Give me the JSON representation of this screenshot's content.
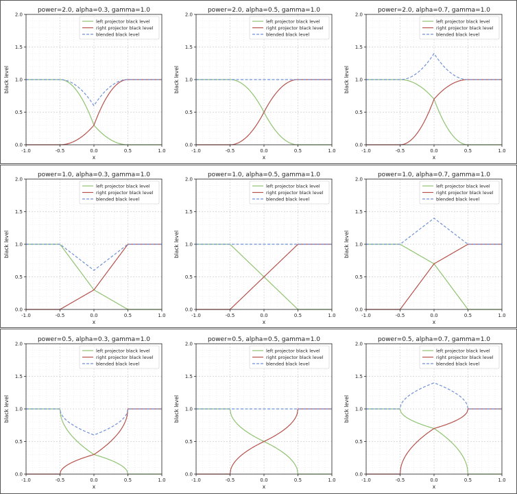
{
  "chart_data": {
    "type": "line",
    "common": {
      "xlabel": "x",
      "ylabel": "black level",
      "xlim": [
        -1.0,
        1.0
      ],
      "ylim": [
        0.0,
        2.0
      ],
      "xticks": [
        -1.0,
        -0.5,
        0.0,
        0.5,
        1.0
      ],
      "xtick_labels": [
        "-1.0",
        "-0.5",
        "0.0",
        "0.5",
        "1.0"
      ],
      "yticks": [
        0.0,
        0.5,
        1.0,
        1.5,
        2.0
      ],
      "ytick_labels": [
        "0.0",
        "0.5",
        "1.0",
        "1.5",
        "2.0"
      ],
      "grid": "on (major and minor, dotted)",
      "legend_location": "top-right",
      "legend": [
        "left projector black level",
        "right projector black level",
        "blended black level"
      ],
      "series_styles": [
        {
          "name": "left projector black level",
          "color": "#8fc36f",
          "dash": "solid"
        },
        {
          "name": "right projector black level",
          "color": "#b5504a",
          "dash": "solid"
        },
        {
          "name": "blended black level",
          "color": "#6f8fd8",
          "dash": "dashed"
        }
      ],
      "overlap_region": [
        -0.5,
        0.5
      ]
    },
    "panels": [
      {
        "title": "power=2.0, alpha=0.3, gamma=1.0",
        "power": 2.0,
        "alpha": 0.3,
        "gamma": 1.0
      },
      {
        "title": "power=2.0, alpha=0.5, gamma=1.0",
        "power": 2.0,
        "alpha": 0.5,
        "gamma": 1.0
      },
      {
        "title": "power=2.0, alpha=0.7, gamma=1.0",
        "power": 2.0,
        "alpha": 0.7,
        "gamma": 1.0
      },
      {
        "title": "power=1.0, alpha=0.3, gamma=1.0",
        "power": 1.0,
        "alpha": 0.3,
        "gamma": 1.0
      },
      {
        "title": "power=1.0, alpha=0.5, gamma=1.0",
        "power": 1.0,
        "alpha": 0.5,
        "gamma": 1.0
      },
      {
        "title": "power=1.0, alpha=0.7, gamma=1.0",
        "power": 1.0,
        "alpha": 0.7,
        "gamma": 1.0
      },
      {
        "title": "power=0.5, alpha=0.3, gamma=1.0",
        "power": 0.5,
        "alpha": 0.3,
        "gamma": 1.0
      },
      {
        "title": "power=0.5, alpha=0.5, gamma=1.0",
        "power": 0.5,
        "alpha": 0.5,
        "gamma": 1.0
      },
      {
        "title": "power=0.5, alpha=0.7, gamma=1.0",
        "power": 0.5,
        "alpha": 0.7,
        "gamma": 1.0
      }
    ]
  }
}
